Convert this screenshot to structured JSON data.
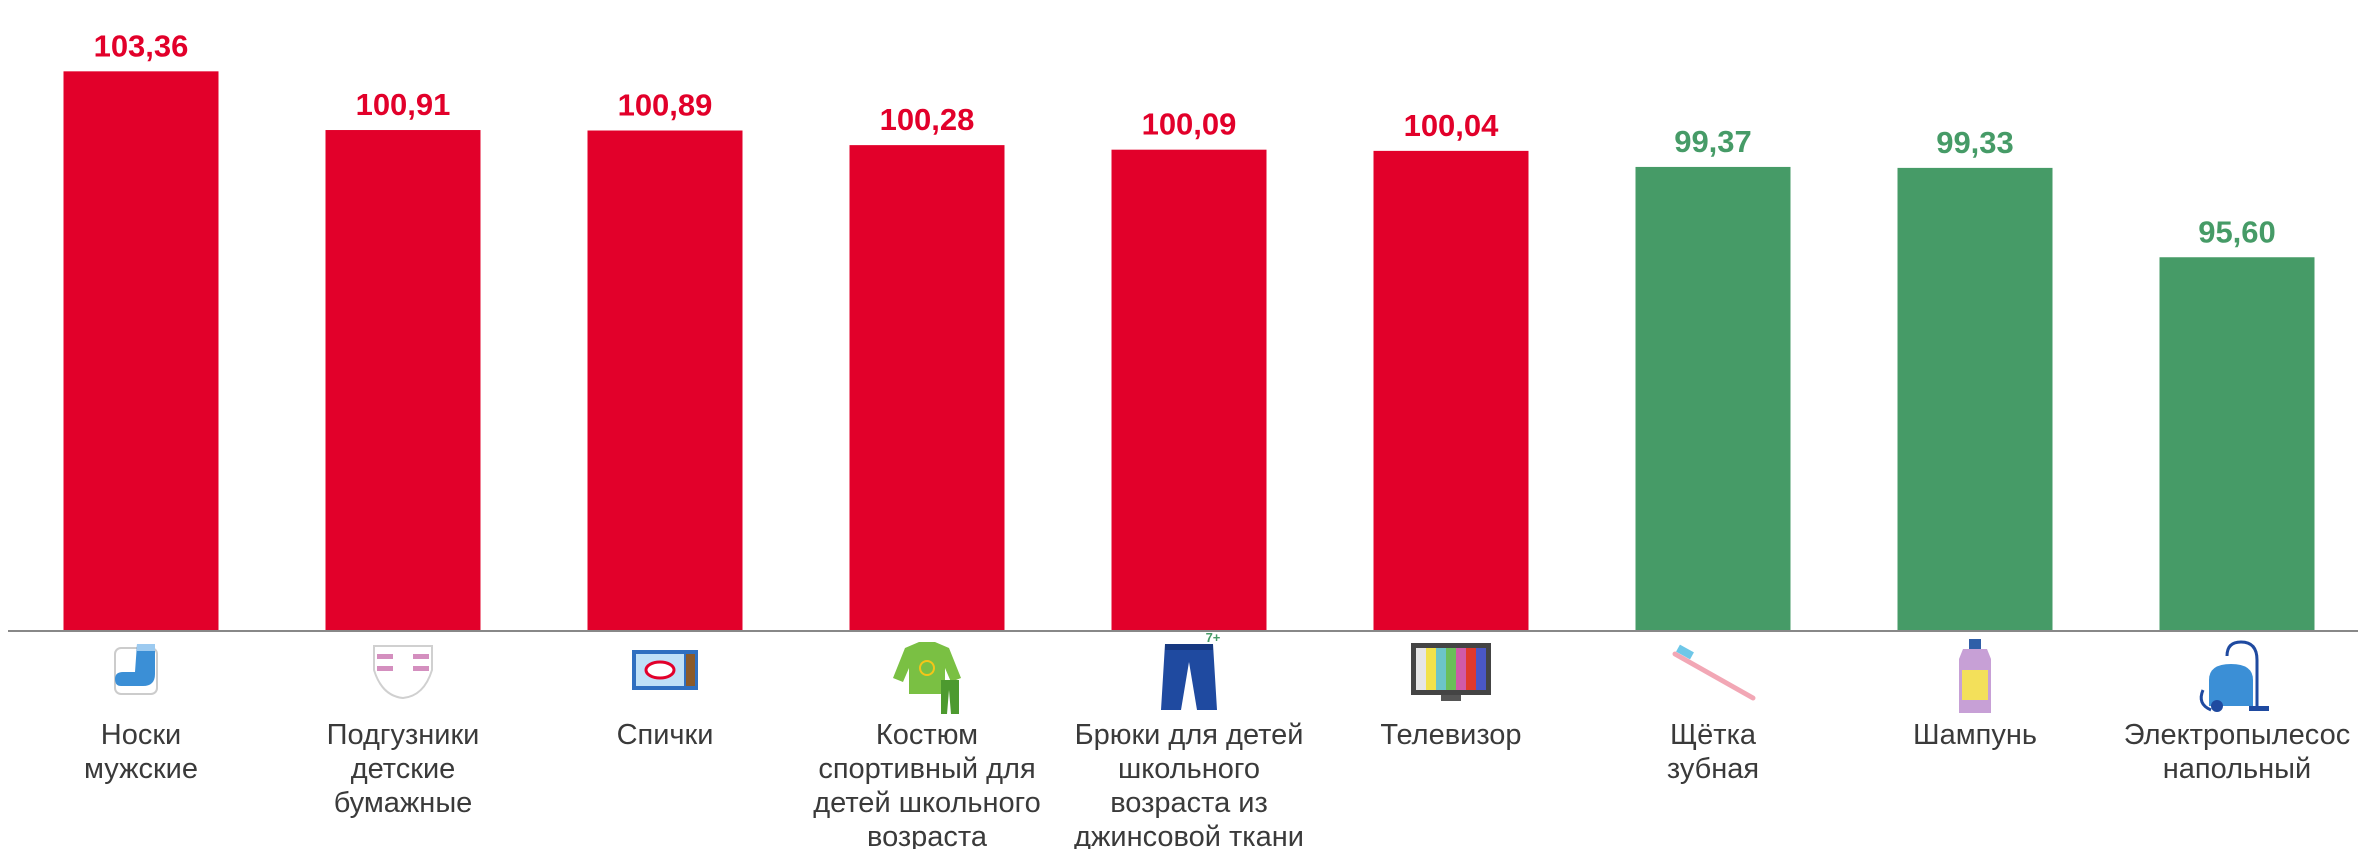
{
  "chart_data": {
    "type": "bar",
    "title": "",
    "xlabel": "",
    "ylabel": "",
    "ylim": [
      80,
      104
    ],
    "categories": [
      [
        "Носки",
        "мужские"
      ],
      [
        "Подгузники",
        "детские",
        "бумажные"
      ],
      [
        "Спички"
      ],
      [
        "Костюм",
        "спортивный для",
        "детей школьного",
        "возраста"
      ],
      [
        "Брюки для детей",
        "школьного",
        "возраста из",
        "джинсовой ткани"
      ],
      [
        "Телевизор"
      ],
      [
        "Щётка",
        "зубная"
      ],
      [
        "Шампунь"
      ],
      [
        "Электропылесос",
        "напольный"
      ]
    ],
    "values": [
      103.36,
      100.91,
      100.89,
      100.28,
      100.09,
      100.04,
      99.37,
      99.33,
      95.6
    ],
    "value_labels": [
      "103,36",
      "100,91",
      "100,89",
      "100,28",
      "100,09",
      "100,04",
      "99,37",
      "99,33",
      "95,60"
    ],
    "icons": [
      "sock-icon",
      "diaper-icon",
      "matchbox-icon",
      "tracksuit-icon",
      "jeans-icon",
      "tv-icon",
      "toothbrush-icon",
      "shampoo-icon",
      "vacuum-cleaner-icon"
    ],
    "icon_badge": "7+",
    "threshold": 100,
    "colors": {
      "above": "#e2002a",
      "below": "#469b67",
      "axis": "#888888",
      "badge": "#469b67"
    }
  }
}
